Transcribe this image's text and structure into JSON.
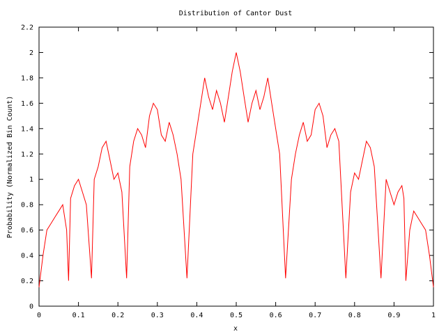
{
  "chart_data": {
    "type": "line",
    "title": "Distribution of Cantor Dust",
    "xlabel": "x",
    "ylabel": "Probability (Normalized Bin Count)",
    "xlim": [
      0,
      1
    ],
    "ylim": [
      0,
      2.2
    ],
    "x_ticks": [
      "0",
      "0.1",
      "0.2",
      "0.3",
      "0.4",
      "0.5",
      "0.6",
      "0.7",
      "0.8",
      "0.9",
      "1"
    ],
    "y_ticks": [
      "0",
      "0.2",
      "0.4",
      "0.6",
      "0.8",
      "1",
      "1.2",
      "1.4",
      "1.6",
      "1.8",
      "2",
      "2.2"
    ],
    "grid": false,
    "legend": "none",
    "line_color": "#ff0000",
    "series": [
      {
        "x": [
          0.0,
          0.01,
          0.02,
          0.03,
          0.04,
          0.05,
          0.06,
          0.07,
          0.075,
          0.08,
          0.09,
          0.1,
          0.11,
          0.12,
          0.133,
          0.14,
          0.15,
          0.16,
          0.17,
          0.18,
          0.19,
          0.2,
          0.21,
          0.222,
          0.23,
          0.24,
          0.25,
          0.26,
          0.27,
          0.28,
          0.29,
          0.3,
          0.31,
          0.32,
          0.33,
          0.34,
          0.35,
          0.36,
          0.375,
          0.39,
          0.4,
          0.41,
          0.42,
          0.43,
          0.44,
          0.45,
          0.46,
          0.47,
          0.48,
          0.49,
          0.5,
          0.51,
          0.52,
          0.53,
          0.54,
          0.55,
          0.56,
          0.57,
          0.58,
          0.59,
          0.6,
          0.61,
          0.625,
          0.64,
          0.65,
          0.66,
          0.67,
          0.68,
          0.69,
          0.7,
          0.71,
          0.72,
          0.73,
          0.74,
          0.75,
          0.76,
          0.778,
          0.79,
          0.8,
          0.81,
          0.82,
          0.83,
          0.84,
          0.85,
          0.867,
          0.88,
          0.89,
          0.9,
          0.91,
          0.92,
          0.925,
          0.93,
          0.94,
          0.95,
          0.96,
          0.97,
          0.98,
          0.99,
          1.0
        ],
        "values": [
          0.15,
          0.4,
          0.6,
          0.65,
          0.7,
          0.75,
          0.8,
          0.6,
          0.2,
          0.85,
          0.95,
          1.0,
          0.9,
          0.8,
          0.22,
          1.0,
          1.1,
          1.25,
          1.3,
          1.15,
          1.0,
          1.05,
          0.9,
          0.22,
          1.1,
          1.3,
          1.4,
          1.35,
          1.25,
          1.5,
          1.6,
          1.55,
          1.35,
          1.3,
          1.45,
          1.35,
          1.2,
          1.0,
          0.22,
          1.2,
          1.4,
          1.6,
          1.8,
          1.65,
          1.55,
          1.7,
          1.6,
          1.45,
          1.65,
          1.85,
          2.0,
          1.85,
          1.65,
          1.45,
          1.6,
          1.7,
          1.55,
          1.65,
          1.8,
          1.6,
          1.4,
          1.2,
          0.22,
          1.0,
          1.2,
          1.35,
          1.45,
          1.3,
          1.35,
          1.55,
          1.6,
          1.5,
          1.25,
          1.35,
          1.4,
          1.3,
          0.22,
          0.9,
          1.05,
          1.0,
          1.15,
          1.3,
          1.25,
          1.1,
          0.22,
          1.0,
          0.9,
          0.8,
          0.9,
          0.95,
          0.85,
          0.2,
          0.6,
          0.75,
          0.7,
          0.65,
          0.6,
          0.4,
          0.15
        ]
      }
    ]
  }
}
